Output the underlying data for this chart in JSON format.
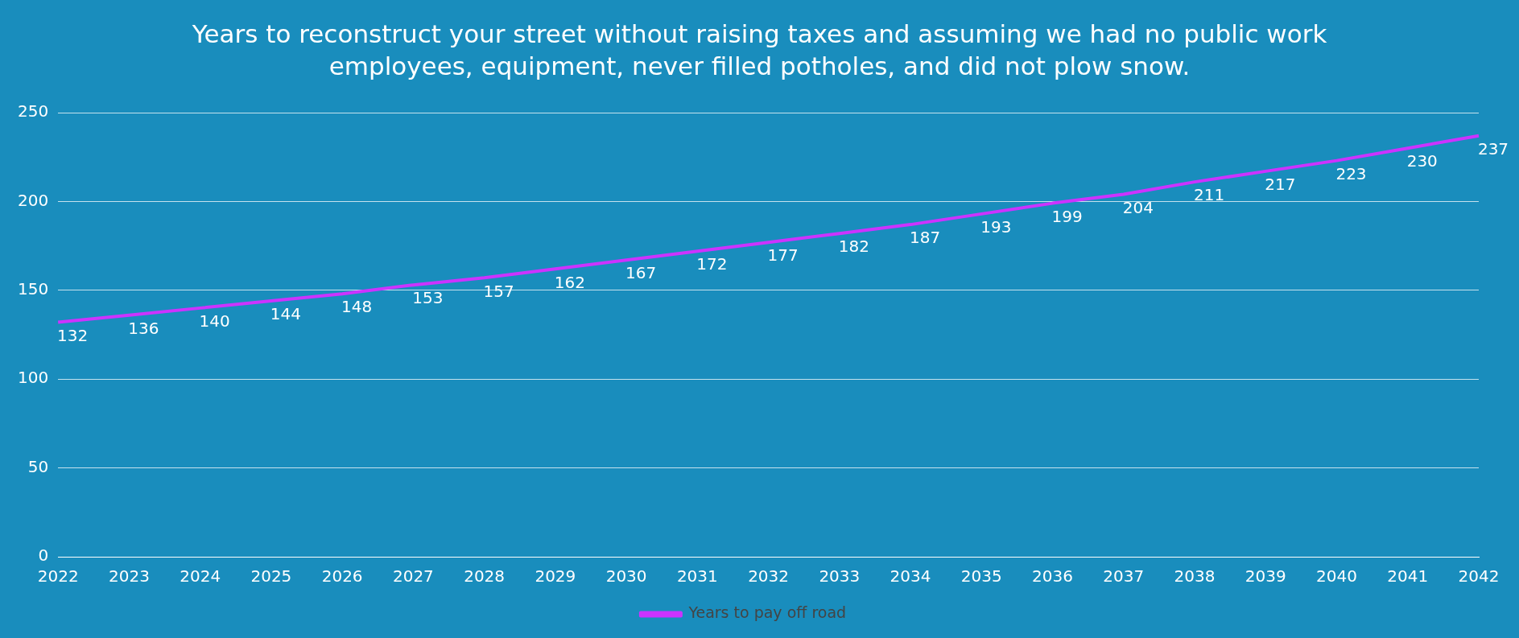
{
  "chart_data": {
    "type": "line",
    "title": "Years to reconstruct your street without raising taxes and assuming we had no public work employees, equipment, never filled potholes, and did not plow snow.",
    "categories": [
      "2022",
      "2023",
      "2024",
      "2025",
      "2026",
      "2027",
      "2028",
      "2029",
      "2030",
      "2031",
      "2032",
      "2033",
      "2034",
      "2035",
      "2036",
      "2037",
      "2038",
      "2039",
      "2040",
      "2041",
      "2042"
    ],
    "series": [
      {
        "name": "Years to pay off road",
        "color": "#cc33ff",
        "values": [
          132,
          136,
          140,
          144,
          148,
          153,
          157,
          162,
          167,
          172,
          177,
          182,
          187,
          193,
          199,
          204,
          211,
          217,
          223,
          230,
          237
        ]
      }
    ],
    "ylim": [
      0,
      250
    ],
    "yticks": [
      0,
      50,
      100,
      150,
      200,
      250
    ],
    "grid": "y",
    "legend": "bottom",
    "data_labels": true,
    "marker": "none"
  }
}
